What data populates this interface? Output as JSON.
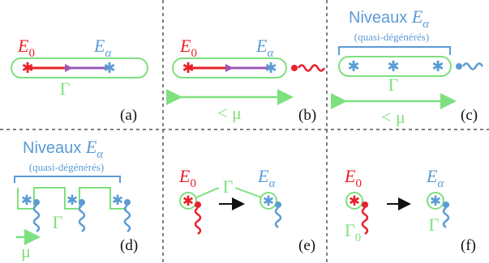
{
  "colors": {
    "red": "#e8202a",
    "blue": "#5b9bd5",
    "green": "#7ee07e",
    "purple": "#9b59b6",
    "black": "#111111",
    "divider": "#555555"
  },
  "labels": {
    "e0": "E",
    "e0_sub": "0",
    "ea": "E",
    "ea_sub": "α",
    "gamma": "Γ",
    "gamma0": "Γ",
    "gamma0_sub": "0",
    "less_mu": "< μ",
    "mu": "μ",
    "niveaux": "Niveaux ",
    "quasi": "(quasi-dégénérés)"
  },
  "panels": {
    "a": "(a)",
    "b": "(b)",
    "c": "(c)",
    "d": "(d)",
    "e": "(e)",
    "f": "(f)"
  }
}
